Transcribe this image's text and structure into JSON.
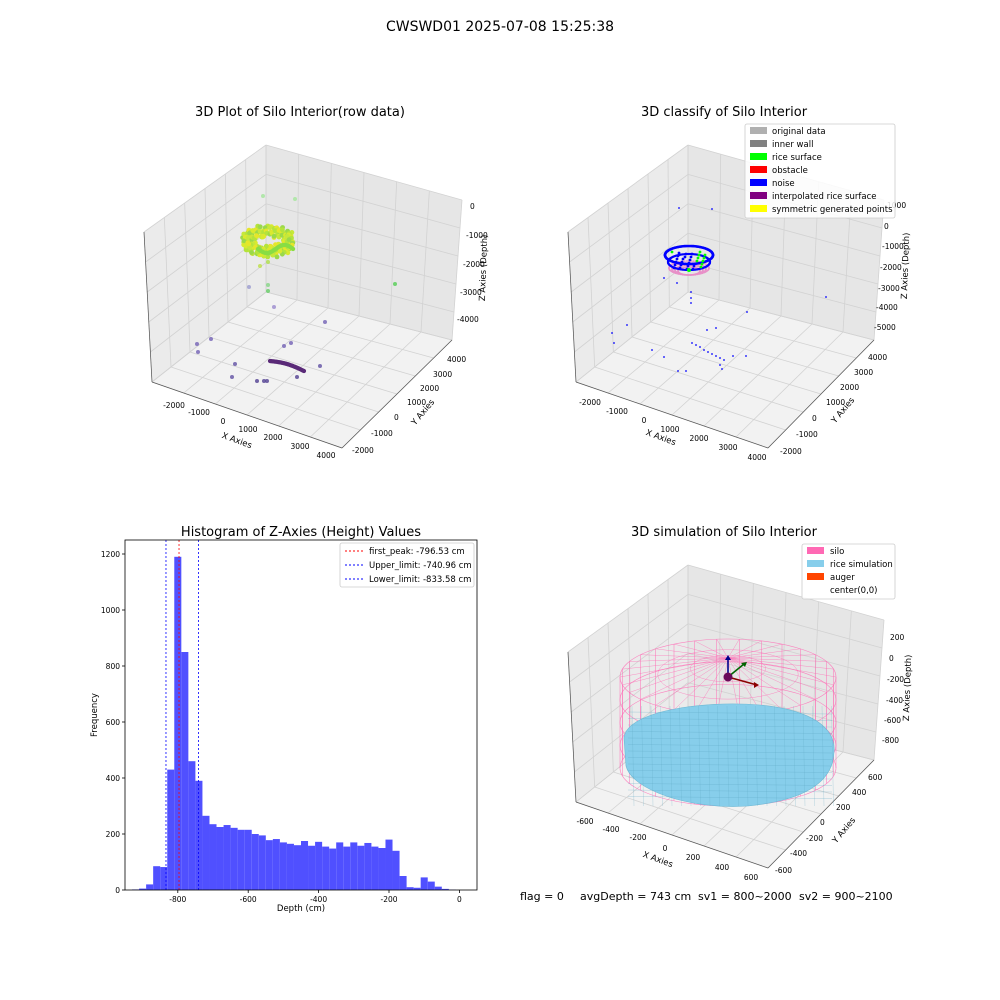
{
  "suptitle": "CWSWD01 2025-07-08 15:25:38",
  "colors": {
    "gray_light": "#b0b0b0",
    "gray_dark": "#808080",
    "green": "#00ff00",
    "red": "#ff0000",
    "blue": "#0000ff",
    "purple": "#800080",
    "yellow": "#ffff00",
    "hist_bar": "#5050ff",
    "silo_pink": "#ff69b4",
    "rice_blue": "#87ceeb",
    "auger_orange": "#ff4500"
  },
  "panel1": {
    "title": "3D Plot of Silo Interior(row data)",
    "xlabel": "X Axies",
    "ylabel": "Y Axies",
    "zlabel": "Z Axies (Depth)",
    "xticks": [
      "-2000",
      "-1000",
      "0",
      "1000",
      "2000",
      "3000",
      "4000"
    ],
    "yticks": [
      "-2000",
      "-1000",
      "0",
      "1000",
      "2000",
      "3000",
      "4000"
    ],
    "zticks": [
      "0",
      "-1000",
      "-2000",
      "-3000",
      "-4000"
    ]
  },
  "panel2": {
    "title": "3D classify of Silo Interior",
    "xlabel": "X Axies",
    "ylabel": "Y Axies",
    "zlabel": "Z Axies (Depth)",
    "xticks": [
      "-2000",
      "-1000",
      "0",
      "1000",
      "2000",
      "3000",
      "4000"
    ],
    "yticks": [
      "-2000",
      "-1000",
      "0",
      "1000",
      "2000",
      "3000",
      "4000"
    ],
    "zticks": [
      "1000",
      "0",
      "-1000",
      "-2000",
      "-3000",
      "-4000",
      "-5000"
    ],
    "legend": [
      {
        "label": "original data",
        "color": "#b0b0b0"
      },
      {
        "label": "inner wall",
        "color": "#808080"
      },
      {
        "label": "rice surface",
        "color": "#00ff00"
      },
      {
        "label": "obstacle",
        "color": "#ff0000"
      },
      {
        "label": "noise",
        "color": "#0000ff"
      },
      {
        "label": "interpolated rice surface",
        "color": "#800080"
      },
      {
        "label": "symmetric generated points",
        "color": "#ffff00"
      }
    ]
  },
  "panel4": {
    "title": "3D simulation of Silo Interior",
    "xlabel": "X Axies",
    "ylabel": "Y Axies",
    "zlabel": "Z Axies (Depth)",
    "xticks": [
      "-600",
      "-400",
      "-200",
      "0",
      "200",
      "400",
      "600"
    ],
    "yticks": [
      "-600",
      "-400",
      "-200",
      "0",
      "200",
      "400",
      "600"
    ],
    "zticks": [
      "200",
      "0",
      "-200",
      "-400",
      "-600",
      "-800"
    ],
    "legend": [
      {
        "label": "silo",
        "color": "#ff69b4"
      },
      {
        "label": "rice simulation",
        "color": "#87ceeb"
      },
      {
        "label": "auger",
        "color": "#ff4500"
      },
      {
        "label": "center(0,0)",
        "color": ""
      }
    ]
  },
  "chart_data": [
    {
      "type": "bar",
      "title": "Histogram of Z-Axies (Height) Values",
      "xlabel": "Depth (cm)",
      "ylabel": "Frequency",
      "xlim": [
        -950,
        50
      ],
      "ylim": [
        0,
        1250
      ],
      "xticks": [
        -800,
        -600,
        -400,
        -200,
        0
      ],
      "yticks": [
        0,
        200,
        400,
        600,
        800,
        1000,
        1200
      ],
      "bin_edges": [
        -930,
        -910,
        -890,
        -870,
        -850,
        -830,
        -810,
        -790,
        -770,
        -750,
        -730,
        -710,
        -690,
        -670,
        -650,
        -630,
        -610,
        -590,
        -570,
        -550,
        -530,
        -510,
        -490,
        -470,
        -450,
        -430,
        -410,
        -390,
        -370,
        -350,
        -330,
        -310,
        -290,
        -270,
        -250,
        -230,
        -210,
        -190,
        -170,
        -150,
        -130,
        -110,
        -90,
        -70,
        -50,
        -30,
        -10
      ],
      "values": [
        2,
        5,
        20,
        85,
        82,
        430,
        1190,
        850,
        460,
        390,
        265,
        235,
        225,
        232,
        222,
        215,
        215,
        200,
        195,
        178,
        182,
        170,
        165,
        160,
        175,
        158,
        172,
        155,
        148,
        170,
        155,
        170,
        158,
        168,
        155,
        150,
        180,
        140,
        50,
        10,
        8,
        45,
        30,
        12,
        4,
        1
      ],
      "vlines": [
        {
          "x": -796.53,
          "color": "#ff0000",
          "label": "first_peak: -796.53 cm"
        },
        {
          "x": -740.96,
          "color": "#0000ff",
          "label": "Upper_limit: -740.96 cm"
        },
        {
          "x": -833.58,
          "color": "#0000ff",
          "label": "Lower_limit: -833.58 cm"
        }
      ],
      "legend_position": "top-right"
    }
  ],
  "footer": {
    "flag": "flag = 0",
    "avg_depth": "avgDepth = 743 cm",
    "sv1": "sv1 = 800~2000",
    "sv2": "sv2 = 900~2100"
  }
}
